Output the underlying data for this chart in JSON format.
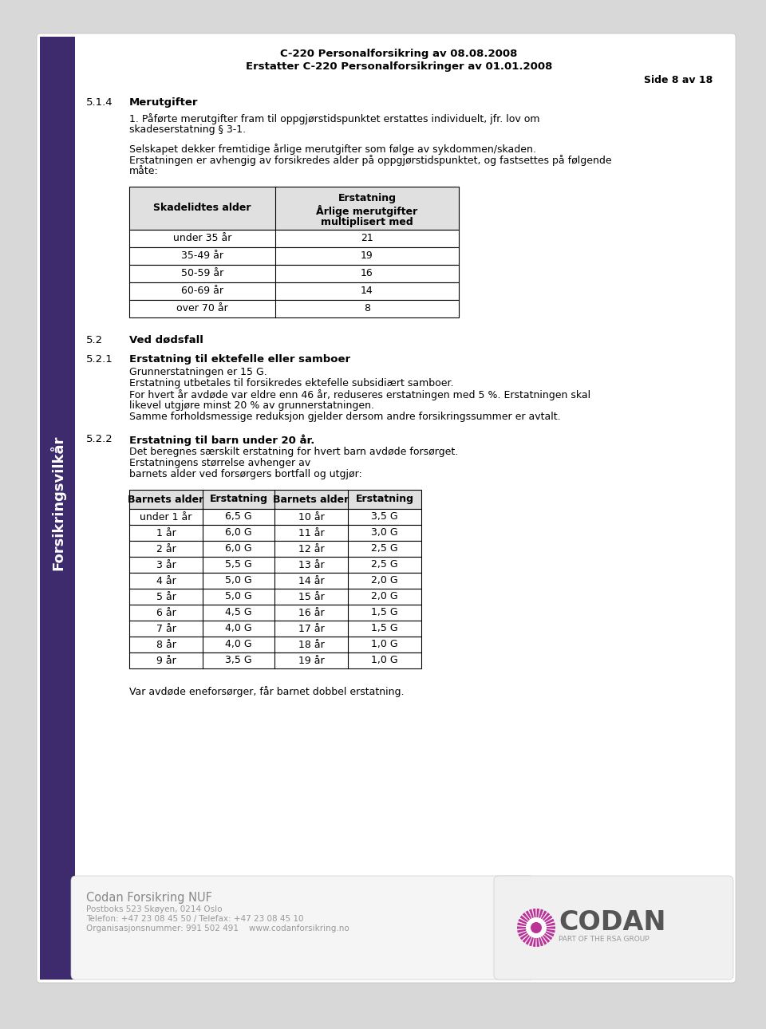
{
  "bg_color": "#ffffff",
  "page_bg": "#f0f0f0",
  "sidebar_color": "#3d2b6e",
  "sidebar_text": "Forsikringsvilkår",
  "header_line1": "C-220 Personalforsikring av 08.08.2008",
  "header_line2": "Erstatter C-220 Personalforsikringer av 01.01.2008",
  "header_side": "Side 8 av 18",
  "section_514": "5.1.4",
  "section_514_title": "Merutgifter",
  "para_514_1": "1. Påførte merutgifter fram til oppgjørstidspunktet erstattes individuelt, jfr. lov om\nskadeserstatning § 3-1.",
  "para_514_2": "Selskapet dekker fremtidige årlige merutgifter som følge av sykdommen/skaden.\nErstatningen er avhengig av forsikredes alder på oppgjørstidspunktet, og fastsettes på følgende\nmåte:",
  "table1_headers": [
    "Skadelidtes alder",
    "Erstatning\nÅrlige merutgifter\nmultiplisert med"
  ],
  "table1_rows": [
    [
      "under 35 år",
      "21"
    ],
    [
      "35-49 år",
      "19"
    ],
    [
      "50-59 år",
      "16"
    ],
    [
      "60-69 år",
      "14"
    ],
    [
      "over 70 år",
      "8"
    ]
  ],
  "section_52": "5.2",
  "section_52_title": "Ved dødsfall",
  "section_521": "5.2.1",
  "section_521_title": "Erstatning til ektefelle eller samboer",
  "para_521": "Grunnerstatningen er 15 G.\nErstatning utbetales til forsikredes ektefelle subsidiært samboer.\nFor hvert år avdøde var eldre enn 46 år, reduseres erstatningen med 5 %. Erstatningen skal\nlikevel utgjøre minst 20 % av grunnerstatningen.\nSamme forholdsmessige reduksjon gjelder dersom andre forsikringssummer er avtalt.",
  "section_522": "5.2.2",
  "section_522_title": "Erstatning til barn under 20 år.",
  "para_522": "Det beregnes særskilt erstatning for hvert barn avdøde forsørget.\nErstatningens størrelse avhenger av\nbarnets alder ved forsørgers bortfall og utgjør:",
  "table2_headers": [
    "Barnets alder",
    "Erstatning",
    "Barnets alder",
    "Erstatning"
  ],
  "table2_rows": [
    [
      "under 1 år",
      "6,5 G",
      "10 år",
      "3,5 G"
    ],
    [
      "1 år",
      "6,0 G",
      "11 år",
      "3,0 G"
    ],
    [
      "2 år",
      "6,0 G",
      "12 år",
      "2,5 G"
    ],
    [
      "3 år",
      "5,5 G",
      "13 år",
      "2,5 G"
    ],
    [
      "4 år",
      "5,0 G",
      "14 år",
      "2,0 G"
    ],
    [
      "5 år",
      "5,0 G",
      "15 år",
      "2,0 G"
    ],
    [
      "6 år",
      "4,5 G",
      "16 år",
      "1,5 G"
    ],
    [
      "7 år",
      "4,0 G",
      "17 år",
      "1,5 G"
    ],
    [
      "8 år",
      "4,0 G",
      "18 år",
      "1,0 G"
    ],
    [
      "9 år",
      "3,5 G",
      "19 år",
      "1,0 G"
    ]
  ],
  "footer_note": "Var avdøde eneforsørger, får barnet dobbel erstatning.",
  "footer_company": "Codan Forsikring NUF",
  "footer_address": "Postboks 523 Skøyen, 0214 Oslo",
  "footer_phone": "Telefon: +47 23 08 45 50 / Telefax: +47 23 08 45 10",
  "footer_org": "Organisasjonsnummer: 991 502 491    www.codanforsikring.no",
  "footer_rsa": "PART OF THE RSA GROUP",
  "codan_text": "CODAN",
  "sidebar_font_color": "#ffffff",
  "table_header_bg": "#e0e0e0",
  "table_row_bg": "#ffffff",
  "footer_text_color": "#999999",
  "footer_company_color": "#888888"
}
